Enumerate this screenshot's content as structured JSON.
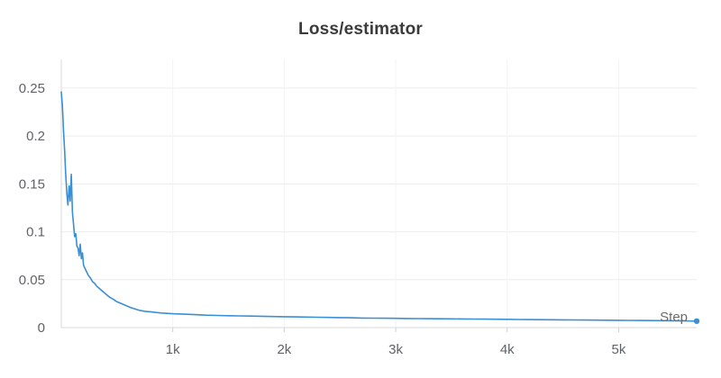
{
  "title": "Loss/estimator",
  "chart_data": {
    "type": "line",
    "title": "Loss/estimator",
    "xlabel": "Step",
    "ylabel": "",
    "xlim": [
      0,
      5700
    ],
    "ylim": [
      0,
      0.28
    ],
    "x_ticks": [
      {
        "value": 1000,
        "label": "1k"
      },
      {
        "value": 2000,
        "label": "2k"
      },
      {
        "value": 3000,
        "label": "3k"
      },
      {
        "value": 4000,
        "label": "4k"
      },
      {
        "value": 5000,
        "label": "5k"
      }
    ],
    "y_ticks": [
      {
        "value": 0,
        "label": "0"
      },
      {
        "value": 0.05,
        "label": "0.05"
      },
      {
        "value": 0.1,
        "label": "0.1"
      },
      {
        "value": 0.15,
        "label": "0.15"
      },
      {
        "value": 0.2,
        "label": "0.2"
      },
      {
        "value": 0.25,
        "label": "0.25"
      }
    ],
    "grid": true,
    "legend": "none",
    "series": [
      {
        "color": "#3b8fd4",
        "x": [
          0,
          10,
          20,
          30,
          40,
          50,
          60,
          70,
          80,
          90,
          100,
          110,
          120,
          130,
          140,
          150,
          160,
          170,
          180,
          190,
          200,
          220,
          240,
          260,
          280,
          300,
          320,
          340,
          360,
          380,
          400,
          430,
          460,
          500,
          540,
          580,
          620,
          660,
          700,
          750,
          800,
          850,
          900,
          950,
          1000,
          1100,
          1200,
          1300,
          1400,
          1500,
          1600,
          1700,
          1800,
          1900,
          2000,
          2100,
          2200,
          2300,
          2400,
          2500,
          2600,
          2700,
          2800,
          2900,
          3000,
          3100,
          3200,
          3300,
          3400,
          3500,
          3600,
          3700,
          3800,
          3900,
          4000,
          4100,
          4200,
          4300,
          4400,
          4500,
          4600,
          4700,
          4800,
          4900,
          5000,
          5100,
          5200,
          5300,
          5400,
          5500,
          5600,
          5700
        ],
        "y": [
          0.246,
          0.232,
          0.205,
          0.185,
          0.16,
          0.14,
          0.128,
          0.148,
          0.132,
          0.16,
          0.12,
          0.108,
          0.095,
          0.098,
          0.085,
          0.083,
          0.075,
          0.087,
          0.072,
          0.078,
          0.065,
          0.06,
          0.055,
          0.052,
          0.048,
          0.046,
          0.043,
          0.041,
          0.039,
          0.037,
          0.035,
          0.032,
          0.03,
          0.027,
          0.025,
          0.023,
          0.021,
          0.0195,
          0.018,
          0.017,
          0.0165,
          0.0158,
          0.0152,
          0.0148,
          0.0145,
          0.014,
          0.0135,
          0.013,
          0.0127,
          0.0124,
          0.0122,
          0.012,
          0.0118,
          0.0116,
          0.0114,
          0.0112,
          0.011,
          0.0108,
          0.0106,
          0.0104,
          0.0102,
          0.01,
          0.0099,
          0.0098,
          0.0097,
          0.0095,
          0.0094,
          0.0093,
          0.0092,
          0.0091,
          0.009,
          0.0089,
          0.0088,
          0.0087,
          0.0086,
          0.0085,
          0.0084,
          0.0083,
          0.0082,
          0.0081,
          0.008,
          0.0079,
          0.0078,
          0.0077,
          0.0076,
          0.0075,
          0.0074,
          0.0073,
          0.0072,
          0.0071,
          0.007,
          0.0068
        ]
      }
    ]
  }
}
